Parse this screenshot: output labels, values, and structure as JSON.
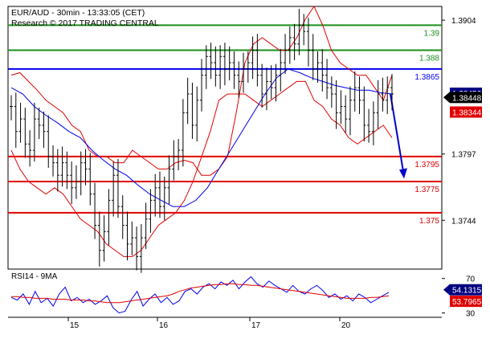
{
  "header": {
    "line1": "EUR/AUD - 30min - 13:33:05 (CET)",
    "line2": "Research © 2017 TRADING CENTRAL"
  },
  "colors": {
    "resistance": "#1a8f1a",
    "pivot": "#0000ee",
    "support": "#e00000",
    "price": "#000000",
    "bollinger": "#e00000",
    "ma": "#0000ee",
    "arrow": "#0000cc",
    "label_blue_bg": "#000080",
    "label_red_bg": "#e00000",
    "label_black_bg": "#000000"
  },
  "chart_data": [
    {
      "type": "candlestick",
      "title": "EUR/AUD - 30min - 13:33:05 (CET)",
      "ylim": [
        1.3705,
        1.3915
      ],
      "x_tick_labels": [
        "15",
        "16",
        "17",
        "20"
      ],
      "y_tick_labels": [
        "1.3904",
        "1.3797",
        "1.3744"
      ],
      "y_tick_values": [
        1.3904,
        1.3797,
        1.3744
      ],
      "levels": [
        {
          "label": "1.39",
          "value": 1.39,
          "kind": "resistance"
        },
        {
          "label": "1.388",
          "value": 1.388,
          "kind": "resistance"
        },
        {
          "label": "1.3865",
          "value": 1.3865,
          "kind": "pivot"
        },
        {
          "label": "1.3795",
          "value": 1.3795,
          "kind": "support"
        },
        {
          "label": "1.3775",
          "value": 1.3775,
          "kind": "support"
        },
        {
          "label": "1.375",
          "value": 1.375,
          "kind": "support"
        }
      ],
      "price_labels": [
        {
          "label": "1.38456",
          "value": 1.38456,
          "kind": "blue"
        },
        {
          "label": "1.38448",
          "value": 1.38448,
          "kind": "black"
        },
        {
          "label": "1.38344",
          "value": 1.38344,
          "kind": "red"
        }
      ],
      "close_path": [
        1.3835,
        1.3815,
        1.3825,
        1.3805,
        1.38,
        1.3825,
        1.382,
        1.3815,
        1.3795,
        1.379,
        1.378,
        1.379,
        1.378,
        1.377,
        1.3775,
        1.379,
        1.3785,
        1.3765,
        1.374,
        1.372,
        1.3735,
        1.376,
        1.378,
        1.3755,
        1.374,
        1.3725,
        1.373,
        1.3715,
        1.373,
        1.3745,
        1.376,
        1.377,
        1.3755,
        1.377,
        1.3785,
        1.3795,
        1.38,
        1.383,
        1.3845,
        1.382,
        1.384,
        1.386,
        1.3875,
        1.387,
        1.386,
        1.3875,
        1.3865,
        1.387,
        1.386,
        1.3855,
        1.3865,
        1.387,
        1.388,
        1.386,
        1.3845,
        1.3855,
        1.385,
        1.386,
        1.387,
        1.388,
        1.389,
        1.3885,
        1.39,
        1.3895,
        1.388,
        1.3865,
        1.387,
        1.386,
        1.385,
        1.3845,
        1.383,
        1.3835,
        1.3825,
        1.384,
        1.385,
        1.384,
        1.382,
        1.3815,
        1.383,
        1.3845,
        1.384,
        1.385,
        1.3845
      ],
      "bollinger_upper": [
        1.386,
        1.3862,
        1.3855,
        1.3848,
        1.384,
        1.3835,
        1.383,
        1.382,
        1.3815,
        1.38,
        1.3795,
        1.3795,
        1.379,
        1.379,
        1.38,
        1.3795,
        1.379,
        1.3785,
        1.3785,
        1.379,
        1.3792,
        1.379,
        1.378,
        1.378,
        1.3785,
        1.3795,
        1.383,
        1.387,
        1.3885,
        1.389,
        1.3885,
        1.388,
        1.388,
        1.389,
        1.3905,
        1.3915,
        1.39,
        1.388,
        1.387,
        1.3865,
        1.386,
        1.386,
        1.385,
        1.384,
        1.386
      ],
      "bollinger_lower": [
        1.38,
        1.3785,
        1.3775,
        1.377,
        1.3765,
        1.377,
        1.3765,
        1.3755,
        1.3745,
        1.374,
        1.3735,
        1.3725,
        1.372,
        1.3715,
        1.3715,
        1.372,
        1.373,
        1.374,
        1.3745,
        1.375,
        1.376,
        1.3775,
        1.3795,
        1.3815,
        1.384,
        1.3845,
        1.3845,
        1.3845,
        1.384,
        1.3835,
        1.384,
        1.3845,
        1.385,
        1.3855,
        1.3855,
        1.384,
        1.3835,
        1.3825,
        1.382,
        1.381,
        1.3805,
        1.381,
        1.3815,
        1.382,
        1.381
      ],
      "moving_average": [
        1.385,
        1.3845,
        1.3835,
        1.3828,
        1.3822,
        1.3815,
        1.381,
        1.38,
        1.3792,
        1.3785,
        1.378,
        1.3772,
        1.3765,
        1.376,
        1.3755,
        1.3755,
        1.376,
        1.377,
        1.3785,
        1.38,
        1.3815,
        1.383,
        1.3845,
        1.3858,
        1.3865,
        1.3862,
        1.3858,
        1.3855,
        1.3852,
        1.385,
        1.3848,
        1.3848,
        1.3846,
        1.3845
      ],
      "forecast_arrow": {
        "from": 1.3845,
        "to": 1.3778
      }
    },
    {
      "type": "line",
      "title": "RSI14 - 9MA",
      "ylim": [
        25,
        80
      ],
      "y_tick_labels": [
        "70",
        "30"
      ],
      "y_tick_values": [
        70,
        30
      ],
      "series": [
        {
          "name": "RSI14",
          "values": [
            48,
            45,
            52,
            40,
            55,
            42,
            47,
            38,
            52,
            60,
            44,
            48,
            42,
            46,
            40,
            44,
            50,
            36,
            30,
            32,
            45,
            55,
            38,
            46,
            52,
            42,
            48,
            40,
            44,
            55,
            58,
            52,
            60,
            64,
            58,
            66,
            62,
            68,
            58,
            66,
            72,
            64,
            60,
            67,
            62,
            58,
            54,
            62,
            55,
            52,
            58,
            62,
            56,
            48,
            52,
            46,
            50,
            44,
            52,
            48,
            42,
            46,
            50,
            54
          ]
        },
        {
          "name": "9MA",
          "values": [
            49,
            49,
            48,
            48,
            47,
            47,
            47,
            46,
            46,
            46,
            45,
            45,
            45,
            44,
            44,
            43,
            42,
            42,
            42,
            43,
            44,
            45,
            46,
            47,
            48,
            49,
            50,
            52,
            55,
            57,
            59,
            60,
            61,
            62,
            63,
            63,
            64,
            64,
            63,
            63,
            62,
            62,
            61,
            60,
            59,
            58,
            57,
            56,
            55,
            54,
            53,
            52,
            51,
            50,
            49,
            48,
            47,
            47,
            47,
            47,
            48,
            48,
            49,
            50
          ]
        }
      ],
      "value_labels": [
        {
          "label": "54.1315",
          "value": 54.1315,
          "kind": "blue"
        },
        {
          "label": "53.7965",
          "value": 53.7965,
          "kind": "red"
        }
      ]
    }
  ]
}
